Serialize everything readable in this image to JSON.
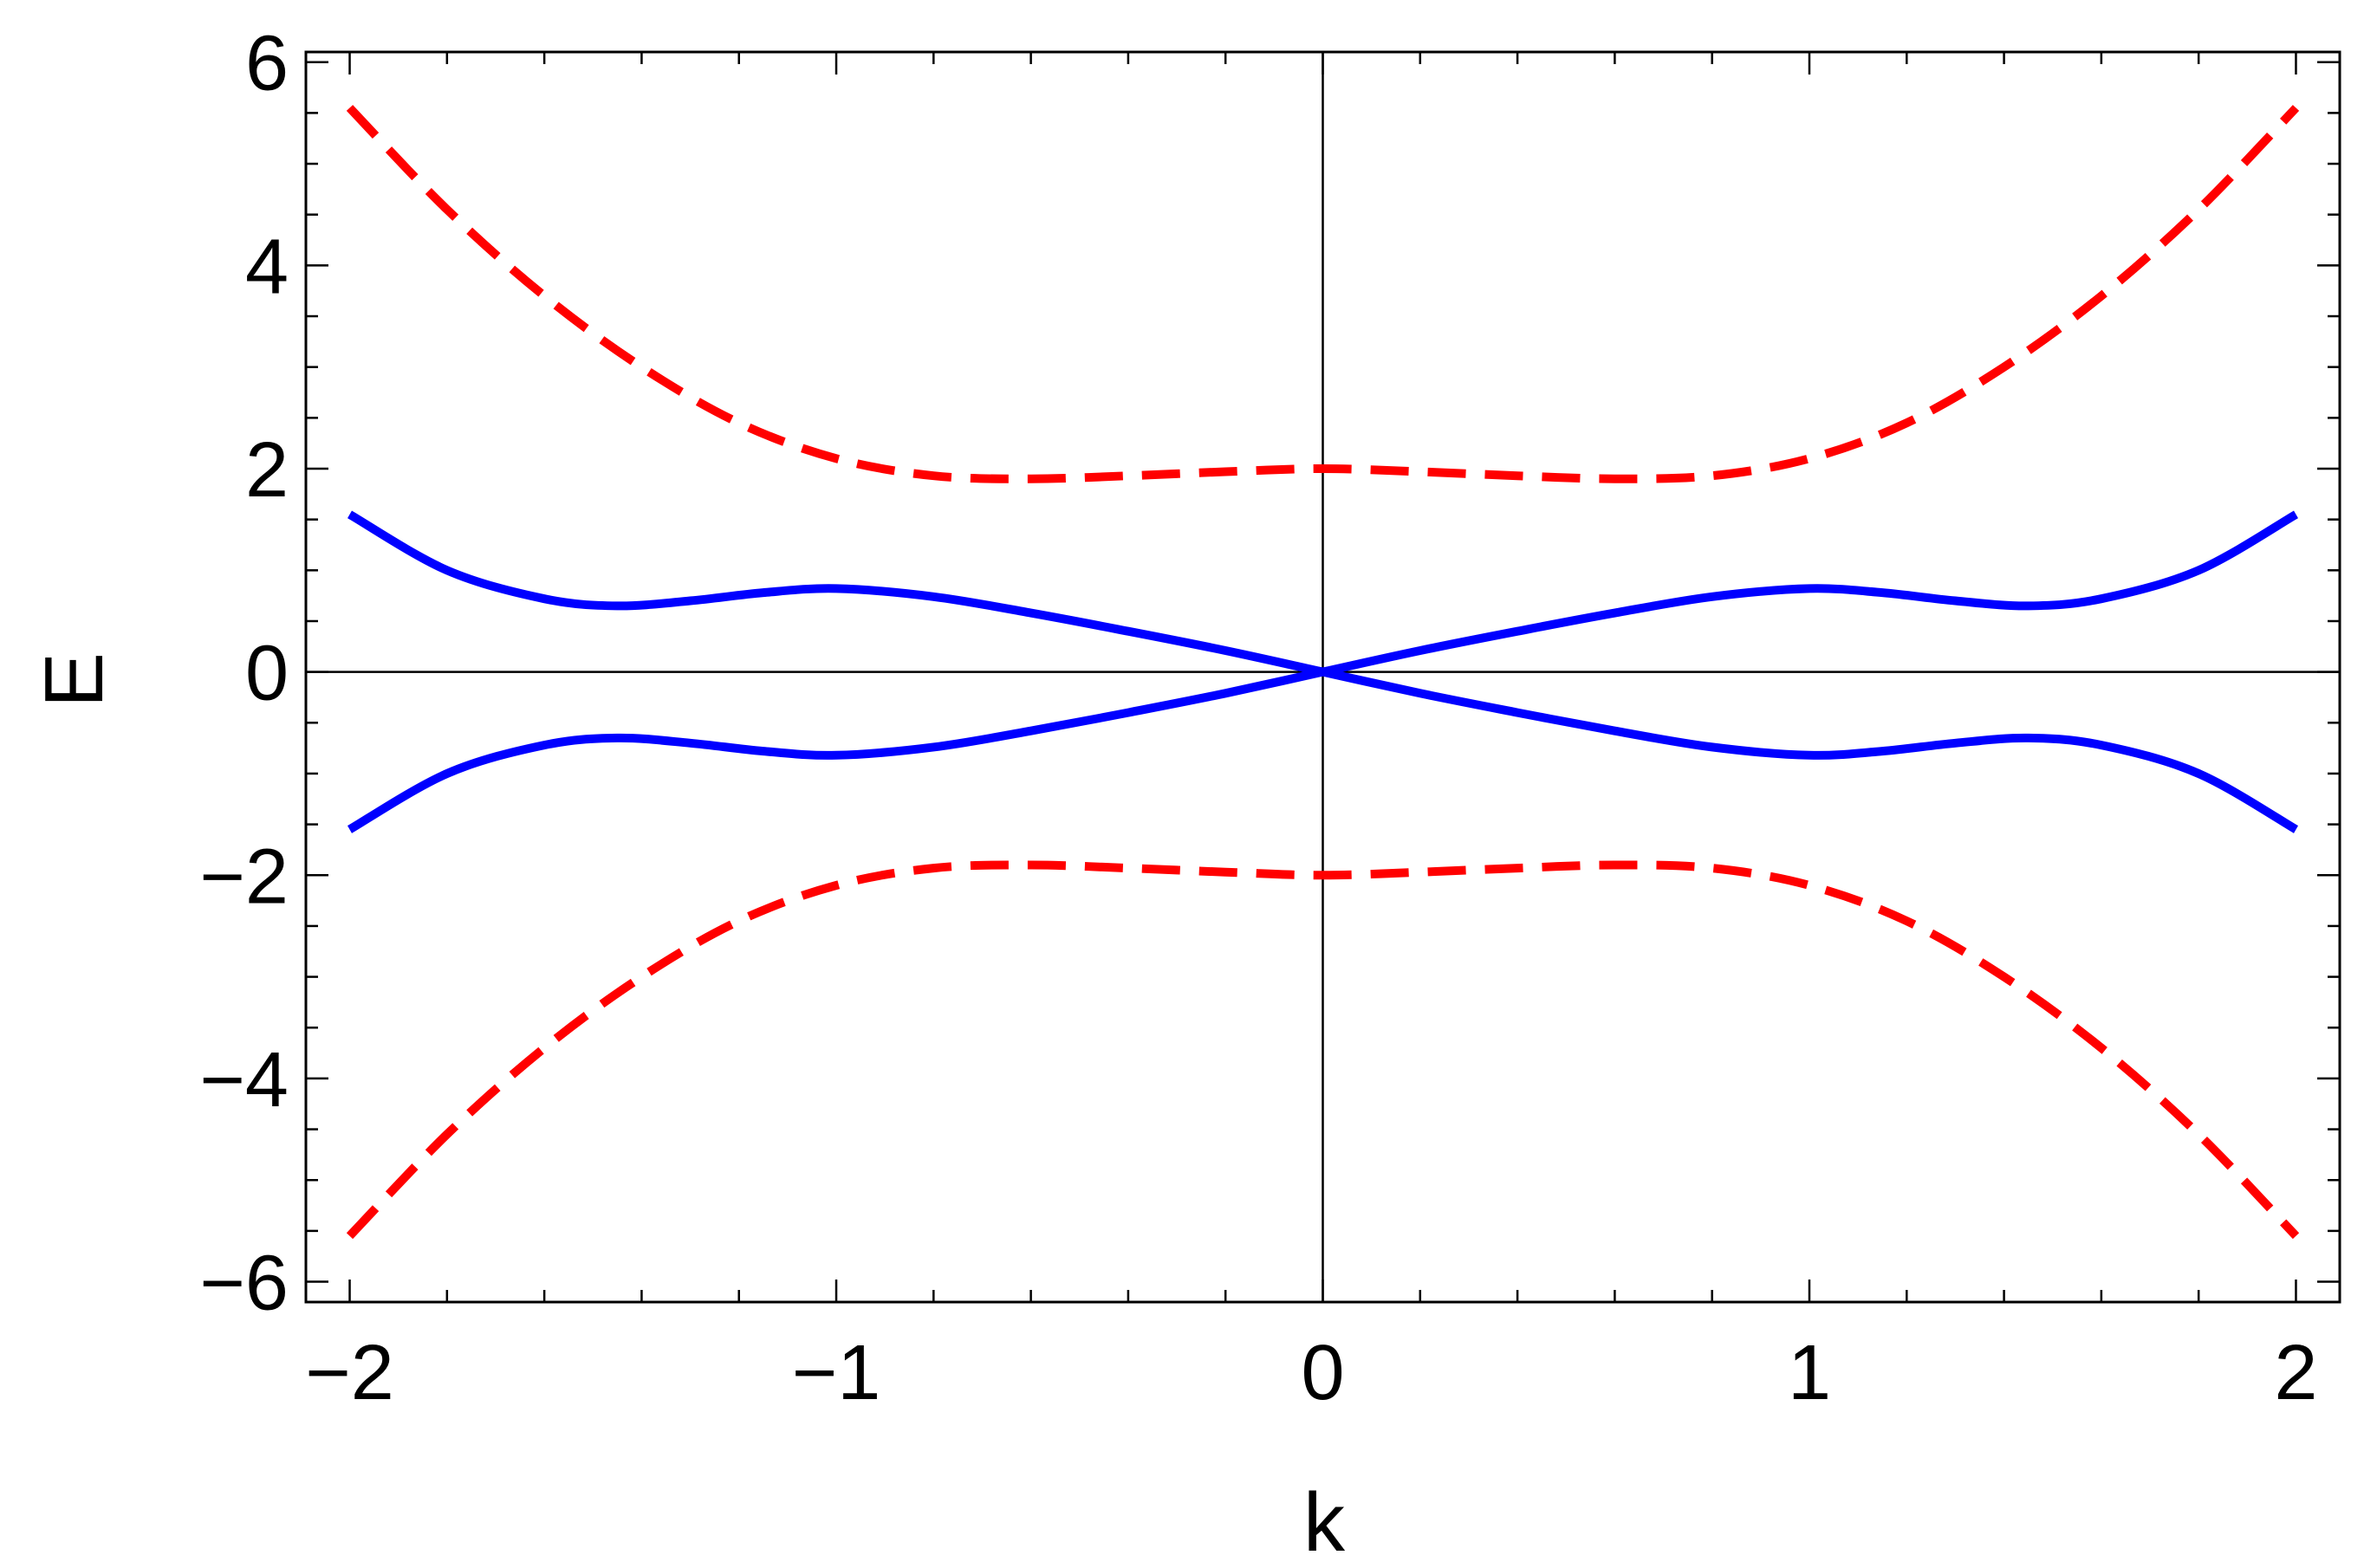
{
  "chart_data": {
    "type": "line",
    "title": "",
    "xlabel": "k",
    "ylabel": "E",
    "xlim": [
      -2.09,
      2.09
    ],
    "ylim": [
      -6.2,
      6.1
    ],
    "x_ticks": [
      -2,
      -1,
      0,
      1,
      2
    ],
    "x_tick_labels": [
      "−2",
      "−1",
      "0",
      "1",
      "2"
    ],
    "y_ticks": [
      -6,
      -4,
      -2,
      0,
      2,
      4,
      6
    ],
    "y_tick_labels": [
      "−6",
      "−4",
      "−2",
      "0",
      "2",
      "4",
      "6"
    ],
    "x_minor_step": 0.2,
    "y_minor_step": 0.5,
    "zero_lines": true,
    "grid": false,
    "legend": "none",
    "series": [
      {
        "style": "dashed",
        "color": "#ff0000",
        "x": [
          -2.0,
          -1.8,
          -1.6,
          -1.4,
          -1.2,
          -1.0,
          -0.8,
          -0.6,
          -0.4,
          -0.2,
          0.0,
          0.2,
          0.4,
          0.6,
          0.8,
          1.0,
          1.2,
          1.4,
          1.6,
          1.8,
          2.0
        ],
        "y": [
          5.55,
          4.55,
          3.7,
          3.0,
          2.45,
          2.1,
          1.93,
          1.9,
          1.93,
          1.97,
          2.0,
          1.97,
          1.93,
          1.9,
          1.93,
          2.1,
          2.45,
          3.0,
          3.7,
          4.55,
          5.55
        ]
      },
      {
        "style": "dashed",
        "color": "#ff0000",
        "x": [
          -2.0,
          -1.8,
          -1.6,
          -1.4,
          -1.2,
          -1.0,
          -0.8,
          -0.6,
          -0.4,
          -0.2,
          0.0,
          0.2,
          0.4,
          0.6,
          0.8,
          1.0,
          1.2,
          1.4,
          1.6,
          1.8,
          2.0
        ],
        "y": [
          -5.55,
          -4.55,
          -3.7,
          -3.0,
          -2.45,
          -2.1,
          -1.93,
          -1.9,
          -1.93,
          -1.97,
          -2.0,
          -1.97,
          -1.93,
          -1.9,
          -1.93,
          -2.1,
          -2.45,
          -3.0,
          -3.7,
          -4.55,
          -5.55
        ]
      },
      {
        "style": "solid",
        "color": "#0000ff",
        "x": [
          -2.0,
          -1.8,
          -1.6,
          -1.45,
          -1.3,
          -1.15,
          -1.0,
          -0.8,
          -0.6,
          -0.4,
          -0.2,
          0.0,
          0.2,
          0.4,
          0.6,
          0.8,
          1.0,
          1.15,
          1.3,
          1.45,
          1.6,
          1.8,
          2.0
        ],
        "y": [
          1.55,
          1.0,
          0.72,
          0.65,
          0.7,
          0.78,
          0.82,
          0.74,
          0.58,
          0.4,
          0.21,
          0.0,
          -0.21,
          -0.4,
          -0.58,
          -0.74,
          -0.82,
          -0.78,
          -0.7,
          -0.65,
          -0.72,
          -1.0,
          -1.55
        ]
      },
      {
        "style": "solid",
        "color": "#0000ff",
        "x": [
          -2.0,
          -1.8,
          -1.6,
          -1.45,
          -1.3,
          -1.15,
          -1.0,
          -0.8,
          -0.6,
          -0.4,
          -0.2,
          0.0,
          0.2,
          0.4,
          0.6,
          0.8,
          1.0,
          1.15,
          1.3,
          1.45,
          1.6,
          1.8,
          2.0
        ],
        "y": [
          -1.55,
          -1.0,
          -0.72,
          -0.65,
          -0.7,
          -0.78,
          -0.82,
          -0.74,
          -0.58,
          -0.4,
          -0.21,
          0.0,
          0.21,
          0.4,
          0.58,
          0.74,
          0.82,
          0.78,
          0.7,
          0.65,
          0.72,
          1.0,
          1.55
        ]
      }
    ]
  }
}
